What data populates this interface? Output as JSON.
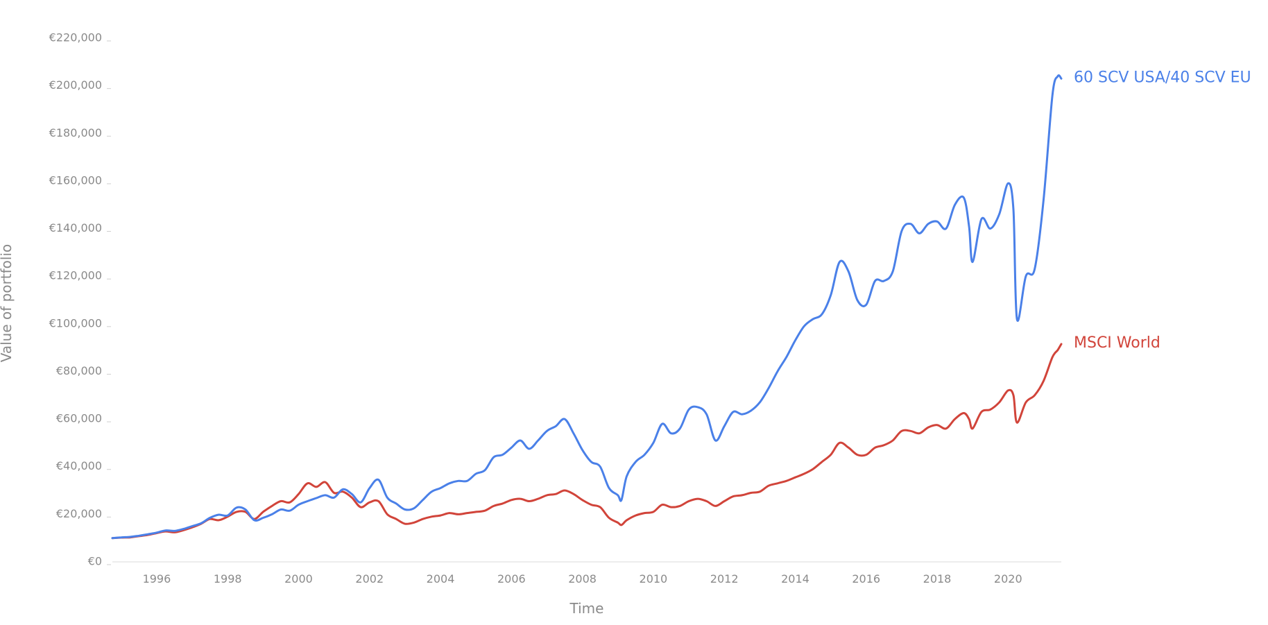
{
  "chart_data": {
    "type": "line",
    "xlabel": "Time",
    "ylabel": "Value of portfolio",
    "xlim": [
      1994.75,
      2021.5
    ],
    "ylim": [
      0,
      220000
    ],
    "y_ticks": [
      0,
      20000,
      40000,
      60000,
      80000,
      100000,
      120000,
      140000,
      160000,
      180000,
      200000,
      220000
    ],
    "y_tick_labels": [
      "€0",
      "€20,000",
      "€40,000",
      "€60,000",
      "€80,000",
      "€100,000",
      "€120,000",
      "€140,000",
      "€160,000",
      "€180,000",
      "€200,000",
      "€220,000"
    ],
    "x_ticks": [
      1996,
      1998,
      2000,
      2002,
      2004,
      2006,
      2008,
      2010,
      2012,
      2014,
      2016,
      2018,
      2020
    ],
    "x_tick_labels": [
      "1996",
      "1998",
      "2000",
      "2002",
      "2004",
      "2006",
      "2008",
      "2010",
      "2012",
      "2014",
      "2016",
      "2018",
      "2020"
    ],
    "grid": false,
    "legend": "direct labels at right end of each line",
    "series": [
      {
        "name": "60 SCV USA/40 SCV EU",
        "color": "#4a80e8",
        "points": [
          [
            1994.75,
            10000
          ],
          [
            1995.0,
            10300
          ],
          [
            1995.25,
            10500
          ],
          [
            1995.5,
            11000
          ],
          [
            1995.75,
            11600
          ],
          [
            1996.0,
            12300
          ],
          [
            1996.25,
            13200
          ],
          [
            1996.5,
            13000
          ],
          [
            1996.75,
            13800
          ],
          [
            1997.0,
            15000
          ],
          [
            1997.25,
            16200
          ],
          [
            1997.5,
            18500
          ],
          [
            1997.75,
            19800
          ],
          [
            1998.0,
            19500
          ],
          [
            1998.25,
            22800
          ],
          [
            1998.5,
            22000
          ],
          [
            1998.75,
            17500
          ],
          [
            1999.0,
            18500
          ],
          [
            1999.25,
            20000
          ],
          [
            1999.5,
            22000
          ],
          [
            1999.75,
            21500
          ],
          [
            2000.0,
            24000
          ],
          [
            2000.25,
            25500
          ],
          [
            2000.5,
            26800
          ],
          [
            2000.75,
            28000
          ],
          [
            2001.0,
            27000
          ],
          [
            2001.25,
            30500
          ],
          [
            2001.5,
            28500
          ],
          [
            2001.75,
            25000
          ],
          [
            2002.0,
            31000
          ],
          [
            2002.25,
            34500
          ],
          [
            2002.5,
            27000
          ],
          [
            2002.75,
            24500
          ],
          [
            2003.0,
            22000
          ],
          [
            2003.25,
            22500
          ],
          [
            2003.5,
            26000
          ],
          [
            2003.75,
            29500
          ],
          [
            2004.0,
            31000
          ],
          [
            2004.25,
            33000
          ],
          [
            2004.5,
            34000
          ],
          [
            2004.75,
            34000
          ],
          [
            2005.0,
            37000
          ],
          [
            2005.25,
            38500
          ],
          [
            2005.5,
            44000
          ],
          [
            2005.75,
            45000
          ],
          [
            2006.0,
            48000
          ],
          [
            2006.25,
            51000
          ],
          [
            2006.5,
            47500
          ],
          [
            2006.75,
            51000
          ],
          [
            2007.0,
            55000
          ],
          [
            2007.25,
            57000
          ],
          [
            2007.5,
            60000
          ],
          [
            2007.75,
            54000
          ],
          [
            2008.0,
            47000
          ],
          [
            2008.25,
            42000
          ],
          [
            2008.5,
            40000
          ],
          [
            2008.75,
            31000
          ],
          [
            2009.0,
            28000
          ],
          [
            2009.1,
            26000
          ],
          [
            2009.25,
            36000
          ],
          [
            2009.5,
            42000
          ],
          [
            2009.75,
            45000
          ],
          [
            2010.0,
            50000
          ],
          [
            2010.25,
            58000
          ],
          [
            2010.5,
            54000
          ],
          [
            2010.75,
            56000
          ],
          [
            2011.0,
            64000
          ],
          [
            2011.25,
            65000
          ],
          [
            2011.5,
            62000
          ],
          [
            2011.75,
            51000
          ],
          [
            2012.0,
            57000
          ],
          [
            2012.25,
            63000
          ],
          [
            2012.5,
            62000
          ],
          [
            2012.75,
            63500
          ],
          [
            2013.0,
            67000
          ],
          [
            2013.25,
            73000
          ],
          [
            2013.5,
            80000
          ],
          [
            2013.75,
            86000
          ],
          [
            2014.0,
            93000
          ],
          [
            2014.25,
            99000
          ],
          [
            2014.5,
            102000
          ],
          [
            2014.75,
            104000
          ],
          [
            2015.0,
            112000
          ],
          [
            2015.25,
            126000
          ],
          [
            2015.5,
            122000
          ],
          [
            2015.75,
            110000
          ],
          [
            2016.0,
            108000
          ],
          [
            2016.25,
            118000
          ],
          [
            2016.5,
            118000
          ],
          [
            2016.75,
            122000
          ],
          [
            2017.0,
            139000
          ],
          [
            2017.25,
            142000
          ],
          [
            2017.5,
            138000
          ],
          [
            2017.75,
            142000
          ],
          [
            2018.0,
            143000
          ],
          [
            2018.25,
            140000
          ],
          [
            2018.5,
            150000
          ],
          [
            2018.75,
            153000
          ],
          [
            2018.9,
            141000
          ],
          [
            2019.0,
            126000
          ],
          [
            2019.25,
            144000
          ],
          [
            2019.5,
            140000
          ],
          [
            2019.75,
            146000
          ],
          [
            2020.0,
            159000
          ],
          [
            2020.15,
            148000
          ],
          [
            2020.25,
            102000
          ],
          [
            2020.5,
            120000
          ],
          [
            2020.75,
            123000
          ],
          [
            2021.0,
            152000
          ],
          [
            2021.25,
            196000
          ],
          [
            2021.4,
            204000
          ],
          [
            2021.5,
            203000
          ]
        ]
      },
      {
        "name": "MSCI World",
        "color": "#d1443a",
        "points": [
          [
            1994.75,
            10000
          ],
          [
            1995.0,
            10200
          ],
          [
            1995.25,
            10300
          ],
          [
            1995.5,
            10800
          ],
          [
            1995.75,
            11300
          ],
          [
            1996.0,
            12100
          ],
          [
            1996.25,
            12800
          ],
          [
            1996.5,
            12400
          ],
          [
            1996.75,
            13300
          ],
          [
            1997.0,
            14500
          ],
          [
            1997.25,
            16000
          ],
          [
            1997.5,
            18000
          ],
          [
            1997.75,
            17500
          ],
          [
            1998.0,
            19000
          ],
          [
            1998.25,
            21000
          ],
          [
            1998.5,
            21000
          ],
          [
            1998.75,
            18000
          ],
          [
            1999.0,
            21000
          ],
          [
            1999.25,
            23500
          ],
          [
            1999.5,
            25500
          ],
          [
            1999.75,
            25000
          ],
          [
            2000.0,
            28500
          ],
          [
            2000.25,
            33000
          ],
          [
            2000.5,
            31500
          ],
          [
            2000.75,
            33500
          ],
          [
            2001.0,
            29000
          ],
          [
            2001.25,
            29500
          ],
          [
            2001.5,
            27000
          ],
          [
            2001.75,
            23000
          ],
          [
            2002.0,
            25000
          ],
          [
            2002.25,
            25500
          ],
          [
            2002.5,
            20000
          ],
          [
            2002.75,
            18000
          ],
          [
            2003.0,
            16000
          ],
          [
            2003.25,
            16500
          ],
          [
            2003.5,
            18000
          ],
          [
            2003.75,
            19000
          ],
          [
            2004.0,
            19500
          ],
          [
            2004.25,
            20500
          ],
          [
            2004.5,
            20000
          ],
          [
            2004.75,
            20500
          ],
          [
            2005.0,
            21000
          ],
          [
            2005.25,
            21500
          ],
          [
            2005.5,
            23500
          ],
          [
            2005.75,
            24500
          ],
          [
            2006.0,
            26000
          ],
          [
            2006.25,
            26500
          ],
          [
            2006.5,
            25500
          ],
          [
            2006.75,
            26500
          ],
          [
            2007.0,
            28000
          ],
          [
            2007.25,
            28500
          ],
          [
            2007.5,
            30000
          ],
          [
            2007.75,
            28500
          ],
          [
            2008.0,
            26000
          ],
          [
            2008.25,
            24000
          ],
          [
            2008.5,
            23000
          ],
          [
            2008.75,
            18500
          ],
          [
            2009.0,
            16500
          ],
          [
            2009.1,
            15500
          ],
          [
            2009.25,
            17500
          ],
          [
            2009.5,
            19500
          ],
          [
            2009.75,
            20500
          ],
          [
            2010.0,
            21000
          ],
          [
            2010.25,
            24000
          ],
          [
            2010.5,
            23000
          ],
          [
            2010.75,
            23500
          ],
          [
            2011.0,
            25500
          ],
          [
            2011.25,
            26500
          ],
          [
            2011.5,
            25500
          ],
          [
            2011.75,
            23500
          ],
          [
            2012.0,
            25500
          ],
          [
            2012.25,
            27500
          ],
          [
            2012.5,
            28000
          ],
          [
            2012.75,
            29000
          ],
          [
            2013.0,
            29500
          ],
          [
            2013.25,
            32000
          ],
          [
            2013.5,
            33000
          ],
          [
            2013.75,
            34000
          ],
          [
            2014.0,
            35500
          ],
          [
            2014.25,
            37000
          ],
          [
            2014.5,
            39000
          ],
          [
            2014.75,
            42000
          ],
          [
            2015.0,
            45000
          ],
          [
            2015.25,
            50000
          ],
          [
            2015.5,
            48000
          ],
          [
            2015.75,
            45000
          ],
          [
            2016.0,
            45000
          ],
          [
            2016.25,
            48000
          ],
          [
            2016.5,
            49000
          ],
          [
            2016.75,
            51000
          ],
          [
            2017.0,
            55000
          ],
          [
            2017.25,
            55000
          ],
          [
            2017.5,
            54000
          ],
          [
            2017.75,
            56500
          ],
          [
            2018.0,
            57500
          ],
          [
            2018.25,
            56000
          ],
          [
            2018.5,
            60000
          ],
          [
            2018.75,
            62500
          ],
          [
            2018.9,
            60000
          ],
          [
            2019.0,
            56000
          ],
          [
            2019.25,
            63000
          ],
          [
            2019.5,
            64000
          ],
          [
            2019.75,
            67000
          ],
          [
            2020.0,
            72000
          ],
          [
            2020.15,
            70000
          ],
          [
            2020.25,
            58500
          ],
          [
            2020.5,
            67000
          ],
          [
            2020.75,
            70000
          ],
          [
            2021.0,
            76000
          ],
          [
            2021.25,
            86000
          ],
          [
            2021.4,
            89000
          ],
          [
            2021.5,
            91500
          ]
        ]
      }
    ]
  }
}
